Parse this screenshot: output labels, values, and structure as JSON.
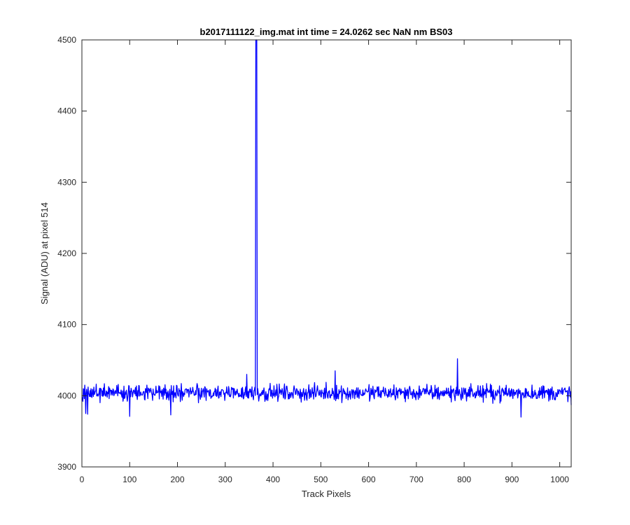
{
  "chart_data": {
    "type": "line",
    "title": "b2017111122_img.mat int time = 24.0262 sec  NaN nm BS03",
    "xlabel": "Track Pixels",
    "ylabel": "Signal (ADU) at pixel 514",
    "xlim": [
      0,
      1024
    ],
    "ylim": [
      3900,
      4500
    ],
    "xticks": [
      0,
      100,
      200,
      300,
      400,
      500,
      600,
      700,
      800,
      900,
      1000
    ],
    "yticks": [
      3900,
      4000,
      4100,
      4200,
      4300,
      4400,
      4500
    ],
    "xtick_labels": [
      "0",
      "100",
      "200",
      "300",
      "400",
      "500",
      "600",
      "700",
      "800",
      "900",
      "1000"
    ],
    "ytick_labels": [
      "3900",
      "4000",
      "4100",
      "4200",
      "4300",
      "4400",
      "4500"
    ],
    "grid": false,
    "line_color": "#0000ff",
    "series": [
      {
        "noise": {
          "x_start": 1,
          "x_end": 1024,
          "baseline": 4004,
          "amplitude": 11,
          "seed": 514
        },
        "points": [
          [
            1,
            3998
          ],
          [
            8,
            3975
          ],
          [
            12,
            3974
          ],
          [
            100,
            3971
          ],
          [
            186,
            3973
          ],
          [
            345,
            4030
          ],
          [
            362,
            4012
          ],
          [
            364,
            4500
          ],
          [
            365,
            4500
          ],
          [
            366,
            4500
          ],
          [
            368,
            4010
          ],
          [
            530,
            4035
          ],
          [
            786,
            4052
          ],
          [
            919,
            3970
          ],
          [
            1024,
            3987
          ]
        ]
      }
    ]
  }
}
